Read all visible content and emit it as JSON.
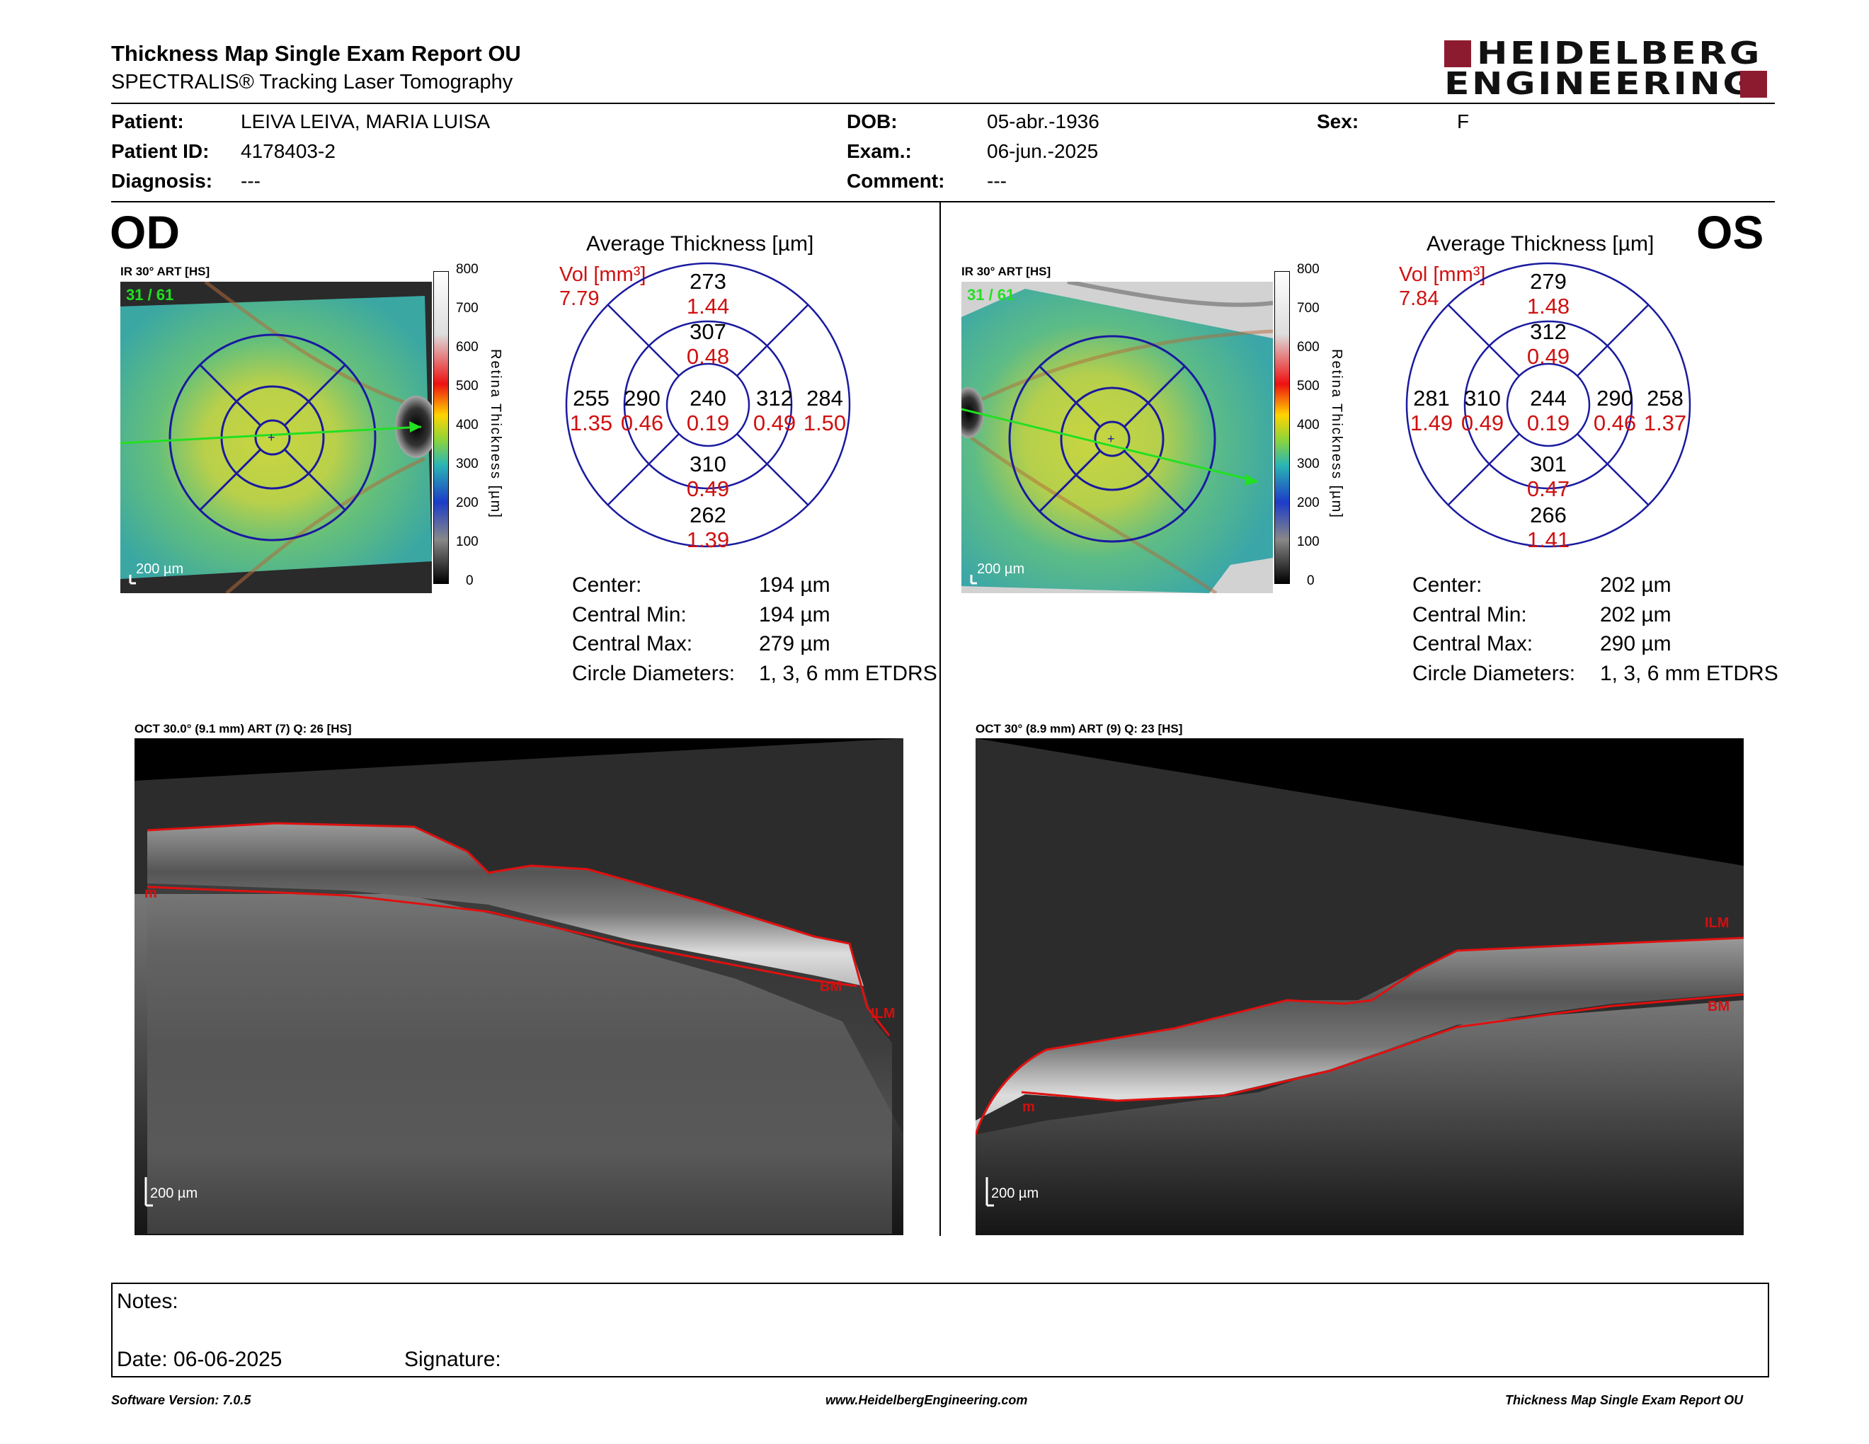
{
  "header": {
    "title": "Thickness Map Single Exam Report OU",
    "subtitle": "SPECTRALIS® Tracking Laser Tomography",
    "logo_line1": "HEIDELBERG",
    "logo_line2": "ENGINEERING"
  },
  "patient": {
    "patient_label": "Patient:",
    "patient_value": "LEIVA LEIVA, MARIA LUISA",
    "id_label": "Patient ID:",
    "id_value": "4178403-2",
    "diagnosis_label": "Diagnosis:",
    "diagnosis_value": "---",
    "dob_label": "DOB:",
    "dob_value": "05-abr.-1936",
    "exam_label": "Exam.:",
    "exam_value": "06-jun.-2025",
    "comment_label": "Comment:",
    "comment_value": "---",
    "sex_label": "Sex:",
    "sex_value": "F"
  },
  "od": {
    "eye": "OD",
    "fundus_label": "IR 30° ART [HS]",
    "frame_count": "31 / 61",
    "fundus_scale": "200 µm",
    "avg_title": "Average Thickness [µm]",
    "vol_label": "Vol [mm³]",
    "vol_value": "7.79",
    "sectors": {
      "outer_sup": "273",
      "outer_sup_vol": "1.44",
      "inner_sup": "307",
      "inner_sup_vol": "0.48",
      "outer_left": "255",
      "outer_left_vol": "1.35",
      "inner_left": "290",
      "inner_left_vol": "0.46",
      "center": "240",
      "center_vol": "0.19",
      "inner_right": "312",
      "inner_right_vol": "0.49",
      "outer_right": "284",
      "outer_right_vol": "1.50",
      "inner_inf": "310",
      "inner_inf_vol": "0.49",
      "outer_inf": "262",
      "outer_inf_vol": "1.39"
    },
    "stats": {
      "center_label": "Center:",
      "center_value": "194 µm",
      "min_label": "Central Min:",
      "min_value": "194 µm",
      "max_label": "Central Max:",
      "max_value": "279 µm",
      "diam_label": "Circle Diameters:",
      "diam_value": "1, 3, 6 mm ETDRS"
    },
    "oct_label": "OCT 30.0° (9.1 mm) ART (7) Q: 26 [HS]",
    "oct_scale": "200 µm",
    "layer_labels": {
      "ilm": "ILM",
      "bm": "BM",
      "left": "m"
    }
  },
  "os": {
    "eye": "OS",
    "fundus_label": "IR 30° ART [HS]",
    "frame_count": "31 / 61",
    "fundus_scale": "200 µm",
    "avg_title": "Average Thickness [µm]",
    "vol_label": "Vol [mm³]",
    "vol_value": "7.84",
    "sectors": {
      "outer_sup": "279",
      "outer_sup_vol": "1.48",
      "inner_sup": "312",
      "inner_sup_vol": "0.49",
      "outer_left": "281",
      "outer_left_vol": "1.49",
      "inner_left": "310",
      "inner_left_vol": "0.49",
      "center": "244",
      "center_vol": "0.19",
      "inner_right": "290",
      "inner_right_vol": "0.46",
      "outer_right": "258",
      "outer_right_vol": "1.37",
      "inner_inf": "301",
      "inner_inf_vol": "0.47",
      "outer_inf": "266",
      "outer_inf_vol": "1.41"
    },
    "stats": {
      "center_label": "Center:",
      "center_value": "202 µm",
      "min_label": "Central Min:",
      "min_value": "202 µm",
      "max_label": "Central Max:",
      "max_value": "290 µm",
      "diam_label": "Circle Diameters:",
      "diam_value": "1, 3, 6 mm ETDRS"
    },
    "oct_label": "OCT 30° (8.9 mm) ART (9) Q: 23 [HS]",
    "oct_scale": "200 µm",
    "layer_labels": {
      "ilm": "ILM",
      "bm": "BM",
      "left": "m"
    }
  },
  "thickness_scale": {
    "title": "Retina Thickness [µm]",
    "ticks": [
      "800",
      "700",
      "600",
      "500",
      "400",
      "300",
      "200",
      "100",
      "0"
    ]
  },
  "notes": {
    "notes_label": "Notes:",
    "date_label": "Date: 06-06-2025",
    "signature_label": "Signature:"
  },
  "footer": {
    "software": "Software Version: 7.0.5",
    "website": "www.HeidelbergEngineering.com",
    "report": "Thickness Map Single Exam Report OU"
  },
  "colors": {
    "brand": "#8d1b2f",
    "volume_red": "#d01010",
    "etdrs_grid": "#1a1aa0"
  }
}
